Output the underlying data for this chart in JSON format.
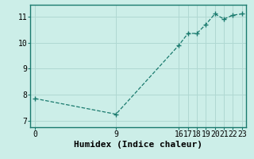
{
  "xlabel": "Humidex (Indice chaleur)",
  "background_color": "#cceee8",
  "line_color": "#1a7a6e",
  "marker_color": "#1a7a6e",
  "x_data": [
    0,
    9,
    16,
    17,
    18,
    19,
    20,
    21,
    22,
    23
  ],
  "y_data": [
    7.85,
    7.25,
    9.9,
    10.35,
    10.35,
    10.7,
    11.1,
    10.9,
    11.05,
    11.1
  ],
  "xlim": [
    -0.5,
    23.5
  ],
  "ylim": [
    6.75,
    11.45
  ],
  "xticks": [
    0,
    9,
    16,
    17,
    18,
    19,
    20,
    21,
    22,
    23
  ],
  "yticks": [
    7,
    8,
    9,
    10,
    11
  ],
  "grid_color": "#b0d8d2",
  "spine_color": "#1a7a6e",
  "xlabel_fontsize": 8,
  "tick_fontsize": 7
}
